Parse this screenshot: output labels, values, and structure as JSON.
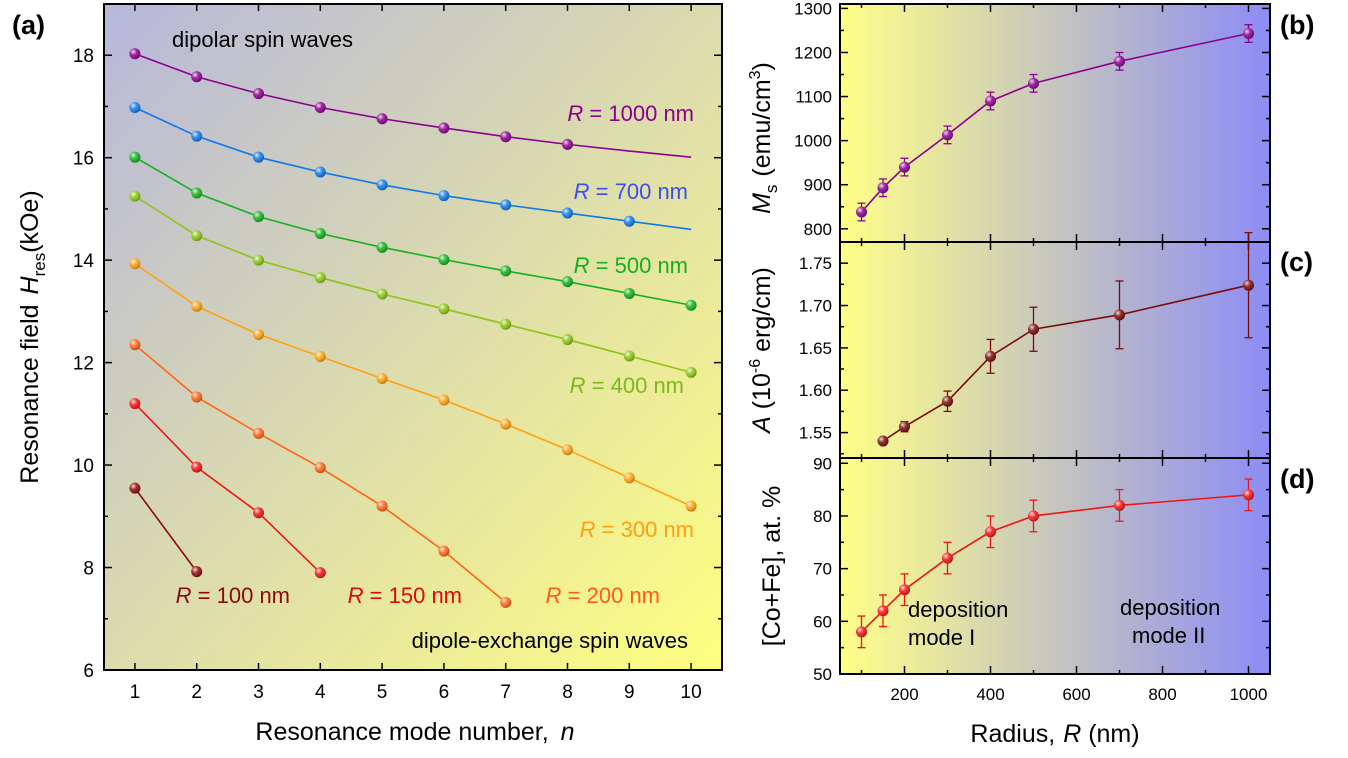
{
  "colors": {
    "left_bg_start": "#b7b7dc",
    "left_bg_end": "#ffff80",
    "right_bg_start": "#ffff88",
    "right_bg_end": "#8c8cf5"
  },
  "chart_data": [
    {
      "panel": "(a)",
      "type": "line",
      "xlabel": "Resonance mode number,",
      "xlabel_var": "n",
      "ylabel_main": "Resonance field",
      "ylabel_var": "H",
      "ylabel_sub": "res",
      "ylabel_unit": "(kOe)",
      "xlim": [
        0.5,
        10.5
      ],
      "ylim": [
        6,
        19
      ],
      "xticks": [
        1,
        2,
        3,
        4,
        5,
        6,
        7,
        8,
        9,
        10
      ],
      "yticks": [
        6,
        8,
        10,
        12,
        14,
        16,
        18
      ],
      "annotations": [
        "dipolar spin waves",
        "dipole-exchange spin waves"
      ],
      "series": [
        {
          "name": "R = 1000 nm",
          "label_prefix": "R",
          "label_rest": " = 1000 nm",
          "color": "#8c0090",
          "label_color": "#8c0090",
          "x": [
            1,
            2,
            3,
            4,
            5,
            6,
            7,
            8
          ],
          "y": [
            18.03,
            17.58,
            17.25,
            16.98,
            16.76,
            16.58,
            16.41,
            16.26
          ],
          "fit_x": [
            1,
            2,
            3,
            4,
            5,
            6,
            7,
            8,
            9,
            10
          ],
          "fit_y": [
            18.03,
            17.58,
            17.25,
            16.98,
            16.76,
            16.58,
            16.41,
            16.26,
            16.13,
            16.01
          ]
        },
        {
          "name": "R = 700 nm",
          "label_prefix": "R",
          "label_rest": " = 700 nm",
          "color": "#0f78ea",
          "label_color": "#3a4ff0",
          "x": [
            1,
            2,
            3,
            4,
            5,
            6,
            7,
            8,
            9
          ],
          "y": [
            16.98,
            16.42,
            16.01,
            15.72,
            15.47,
            15.26,
            15.08,
            14.92,
            14.76
          ],
          "fit_x": [
            1,
            2,
            3,
            4,
            5,
            6,
            7,
            8,
            9,
            10
          ],
          "fit_y": [
            16.98,
            16.42,
            16.01,
            15.72,
            15.47,
            15.26,
            15.08,
            14.92,
            14.76,
            14.6
          ]
        },
        {
          "name": "R = 500 nm",
          "label_prefix": "R",
          "label_rest": " = 500 nm",
          "color": "#16b01e",
          "label_color": "#16b01e",
          "x": [
            1,
            2,
            3,
            4,
            5,
            6,
            7,
            8,
            9,
            10
          ],
          "y": [
            16.01,
            15.31,
            14.85,
            14.52,
            14.25,
            14.01,
            13.79,
            13.58,
            13.35,
            13.12
          ],
          "fit_x": [
            1,
            2,
            3,
            4,
            5,
            6,
            7,
            8,
            9,
            10
          ],
          "fit_y": [
            16.01,
            15.31,
            14.85,
            14.52,
            14.25,
            14.01,
            13.79,
            13.58,
            13.35,
            13.12
          ]
        },
        {
          "name": "R = 400 nm",
          "label_prefix": "R",
          "label_rest": " = 400 nm",
          "color": "#8cc416",
          "label_color": "#7cb820",
          "x": [
            1,
            2,
            3,
            4,
            5,
            6,
            7,
            8,
            9,
            10
          ],
          "y": [
            15.25,
            14.48,
            14.0,
            13.66,
            13.34,
            13.05,
            12.75,
            12.45,
            12.13,
            11.81
          ],
          "fit_x": [
            1,
            2,
            3,
            4,
            5,
            6,
            7,
            8,
            9,
            10
          ],
          "fit_y": [
            15.25,
            14.48,
            14.0,
            13.66,
            13.34,
            13.05,
            12.75,
            12.45,
            12.13,
            11.81
          ]
        },
        {
          "name": "R = 300 nm",
          "label_prefix": "R",
          "label_rest": " = 300 nm",
          "color": "#ffa010",
          "label_color": "#ff9f10",
          "x": [
            1,
            2,
            3,
            4,
            5,
            6,
            7,
            8,
            9,
            10
          ],
          "y": [
            13.93,
            13.1,
            12.55,
            12.12,
            11.69,
            11.27,
            10.8,
            10.3,
            9.75,
            9.2
          ],
          "fit_x": [
            1,
            2,
            3,
            4,
            5,
            6,
            7,
            8,
            9,
            10
          ],
          "fit_y": [
            13.93,
            13.1,
            12.55,
            12.12,
            11.69,
            11.27,
            10.8,
            10.3,
            9.75,
            9.2
          ]
        },
        {
          "name": "R = 200 nm",
          "label_prefix": "R",
          "label_rest": " = 200 nm",
          "color": "#ff6414",
          "label_color": "#ff5a1a",
          "x": [
            1,
            2,
            3,
            4,
            5,
            6,
            7
          ],
          "y": [
            12.35,
            11.33,
            10.62,
            9.95,
            9.2,
            8.32,
            7.32
          ],
          "fit_x": [
            1,
            2,
            3,
            4,
            5,
            6,
            7
          ],
          "fit_y": [
            12.35,
            11.33,
            10.62,
            9.95,
            9.2,
            8.32,
            7.32
          ]
        },
        {
          "name": "R = 150 nm",
          "label_prefix": "R",
          "label_rest": " = 150 nm",
          "color": "#f01414",
          "label_color": "#e00808",
          "x": [
            1,
            2,
            3,
            4
          ],
          "y": [
            11.2,
            9.96,
            9.07,
            7.9
          ],
          "fit_x": [
            1,
            2,
            3,
            4
          ],
          "fit_y": [
            11.2,
            9.96,
            9.07,
            7.9
          ]
        },
        {
          "name": "R = 100 nm",
          "label_prefix": "R",
          "label_rest": " = 100 nm",
          "color": "#8c0a0a",
          "label_color": "#8c0a0a",
          "x": [
            1,
            2
          ],
          "y": [
            9.55,
            7.92
          ],
          "fit_x": [
            1,
            2
          ],
          "fit_y": [
            9.55,
            7.92
          ]
        }
      ]
    },
    {
      "panel": "(b)",
      "type": "line",
      "ylabel_var": "M",
      "ylabel_sub": "s",
      "ylabel_unit": "(emu/cm",
      "ylabel_sup": "3",
      "ylabel_close": ")",
      "xlim": [
        50,
        1050
      ],
      "ylim": [
        770,
        1310
      ],
      "yticks": [
        800,
        900,
        1000,
        1100,
        1200,
        1300
      ],
      "series": [
        {
          "color": "#8c0090",
          "x": [
            100,
            150,
            200,
            300,
            400,
            500,
            700,
            1000
          ],
          "y": [
            838,
            893,
            940,
            1013,
            1090,
            1130,
            1180,
            1243
          ],
          "err": [
            20,
            20,
            20,
            20,
            20,
            20,
            20,
            20
          ]
        }
      ]
    },
    {
      "panel": "(c)",
      "type": "line",
      "ylabel_var": "A",
      "ylabel_unit_pre": " (10",
      "ylabel_sup": "-6",
      "ylabel_unit_post": " erg/cm)",
      "xlim": [
        50,
        1050
      ],
      "ylim": [
        1.52,
        1.775
      ],
      "yticks": [
        1.55,
        1.6,
        1.65,
        1.7,
        1.75
      ],
      "series": [
        {
          "color": "#7a0a0a",
          "x": [
            150,
            200,
            300,
            400,
            500,
            700,
            1000
          ],
          "y": [
            1.54,
            1.557,
            1.587,
            1.64,
            1.672,
            1.689,
            1.724
          ],
          "err": [
            0,
            0.006,
            0.012,
            0.02,
            0.026,
            0.04,
            0.062
          ]
        }
      ]
    },
    {
      "panel": "(d)",
      "type": "line",
      "xlabel": "Radius,",
      "xlabel_var": "R",
      "xlabel_unit": " (nm)",
      "ylabel": "[Co+Fe], at. %",
      "xlim": [
        50,
        1050
      ],
      "ylim": [
        50,
        91
      ],
      "xticks": [
        200,
        400,
        600,
        800,
        1000
      ],
      "yticks": [
        50,
        60,
        70,
        80,
        90
      ],
      "annotations": [
        [
          "deposition",
          "mode I"
        ],
        [
          "deposition",
          "mode II"
        ]
      ],
      "series": [
        {
          "color": "#f01414",
          "x": [
            100,
            150,
            200,
            300,
            400,
            500,
            700,
            1000
          ],
          "y": [
            58,
            62,
            66,
            72,
            77,
            80,
            82,
            84
          ],
          "err": [
            3,
            3,
            3,
            3,
            3,
            3,
            3,
            3
          ]
        }
      ]
    }
  ]
}
